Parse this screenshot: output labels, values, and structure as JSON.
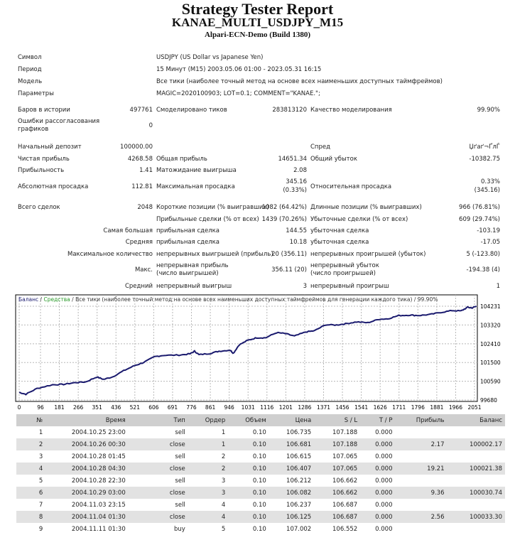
{
  "header": {
    "title": "Strategy Tester Report",
    "subtitle": "KANAE_MULTI_USDJPY_M15",
    "broker": "Alpari-ECN-Demo (Build 1380)"
  },
  "info": {
    "symbol": {
      "label": "Символ",
      "value": "USDJPY (US Dollar vs Japanese Yen)"
    },
    "period": {
      "label": "Период",
      "value": "15 Минут (M15) 2003.05.06 01:00 - 2023.05.31 16:15"
    },
    "model": {
      "label": "Модель",
      "value": "Все тики (наиболее точный метод на основе всех наименьших доступных таймфреймов)"
    },
    "params": {
      "label": "Параметры",
      "value": "MAGIC=2020100903; LOT=0.1; COMMENT=\"KANAE.\";"
    }
  },
  "stats": {
    "bars": {
      "label": "Баров в истории",
      "value": "497761"
    },
    "ticks": {
      "label": "Смоделировано тиков",
      "value": "283813120"
    },
    "quality": {
      "label": "Качество моделирования",
      "value": "99.90%"
    },
    "mismatch": {
      "label": "Ошибки рассогласования графиков",
      "value": "0"
    },
    "deposit": {
      "label": "Начальный депозит",
      "value": "100000.00"
    },
    "spread": {
      "label": "Спред",
      "value": "Џґаґ¬ҐлЃ"
    },
    "net_profit": {
      "label": "Чистая прибыль",
      "value": "4268.58"
    },
    "gross_profit": {
      "label": "Общая прибыль",
      "value": "14651.34"
    },
    "gross_loss": {
      "label": "Общий убыток",
      "value": "-10382.75"
    },
    "profit_factor": {
      "label": "Прибыльность",
      "value": "1.41"
    },
    "expected_payoff": {
      "label": "Матожидание выигрыша",
      "value": "2.08"
    },
    "abs_dd": {
      "label": "Абсолютная просадка",
      "value": "112.81"
    },
    "max_dd": {
      "label": "Максимальная просадка",
      "value": "345.16",
      "value2": "(0.33%)"
    },
    "rel_dd": {
      "label": "Относительная просадка",
      "value": "0.33%",
      "value2": "(345.16)"
    },
    "total_trades": {
      "label": "Всего сделок",
      "value": "2048"
    },
    "short": {
      "label": "Короткие позиции (% выигравших)",
      "value": "1082 (64.42%)"
    },
    "long": {
      "label": "Длинные позиции (% выигравших)",
      "value": "966 (76.81%)"
    },
    "profit_trades": {
      "label": "Прибыльные сделки (% от всех)",
      "value": "1439 (70.26%)"
    },
    "loss_trades": {
      "label": "Убыточные сделки (% от всех)",
      "value": "609 (29.74%)"
    },
    "largest": {
      "label": "Самая большая",
      "profit_label": "прибыльная сделка",
      "profit": "144.55",
      "loss_label": "убыточная сделка",
      "loss": "-103.19"
    },
    "average": {
      "label": "Средняя",
      "profit_label": "прибыльная сделка",
      "profit": "10.18",
      "loss_label": "убыточная сделка",
      "loss": "-17.05"
    },
    "max_count": {
      "label": "Максимальное количество",
      "profit_label": "непрерывных выигрышей (прибыль)",
      "profit": "20 (356.11)",
      "loss_label": "непрерывных проигрышей (убыток)",
      "loss": "5 (-123.80)"
    },
    "max": {
      "label": "Макс.",
      "profit_label": "непрерывная прибыль (число выигрышей)",
      "profit": "356.11 (20)",
      "loss_label": "непрерывный убыток (число проигрышей)",
      "loss": "-194.38 (4)"
    },
    "avg_consec": {
      "label": "Средний",
      "profit_label": "непрерывный выигрыш",
      "profit": "3",
      "loss_label": "непрерывный проигрыш",
      "loss": "1"
    }
  },
  "chart_data": {
    "type": "line",
    "legend": {
      "balance": "Баланс",
      "sep": " / ",
      "equity": "Средства",
      "rest": " / Все тики (наиболее точный метод на основе всех наименьших доступных таймфреймов для генерации каждого тика) / 99.90%"
    },
    "colors": {
      "balance": "#1a1a6e",
      "equity": "#2a9a2a",
      "grid": "#b8b8b8"
    },
    "x_ticks": [
      0,
      96,
      181,
      266,
      351,
      436,
      521,
      606,
      691,
      776,
      861,
      946,
      1031,
      1116,
      1201,
      1286,
      1371,
      1456,
      1541,
      1626,
      1711,
      1796,
      1881,
      1966,
      2051
    ],
    "y_ticks": [
      99680,
      100590,
      101500,
      102410,
      103320,
      104231
    ],
    "xlim": [
      0,
      2075
    ],
    "ylim": [
      99680,
      104231
    ],
    "x": [
      0,
      30,
      80,
      150,
      200,
      250,
      300,
      350,
      380,
      420,
      470,
      520,
      560,
      610,
      650,
      720,
      770,
      790,
      810,
      860,
      900,
      950,
      965,
      990,
      1030,
      1070,
      1110,
      1160,
      1200,
      1240,
      1290,
      1330,
      1380,
      1430,
      1470,
      1520,
      1570,
      1620,
      1660,
      1710,
      1760,
      1800,
      1850,
      1900,
      1950,
      1990,
      2020,
      2040,
      2060
    ],
    "y": [
      100050,
      99960,
      100240,
      100420,
      100440,
      100520,
      100560,
      100800,
      100680,
      100800,
      101100,
      101350,
      101500,
      101780,
      101850,
      101860,
      101920,
      102050,
      101880,
      101940,
      102050,
      102100,
      101950,
      102350,
      102580,
      102700,
      102700,
      102950,
      102900,
      102780,
      102980,
      103040,
      103330,
      103320,
      103380,
      103470,
      103430,
      103600,
      103620,
      103780,
      103800,
      103780,
      103830,
      103930,
      104020,
      104000,
      104180,
      104150,
      104231
    ]
  },
  "trades": {
    "headers": [
      "№",
      "Время",
      "Тип",
      "Ордер",
      "Объем",
      "Цена",
      "S / L",
      "T / P",
      "Прибыль",
      "Баланс"
    ],
    "rows": [
      [
        "1",
        "2004.10.25 23:00",
        "sell",
        "1",
        "0.10",
        "106.735",
        "107.188",
        "0.000",
        "",
        ""
      ],
      [
        "2",
        "2004.10.26 00:30",
        "close",
        "1",
        "0.10",
        "106.681",
        "107.188",
        "0.000",
        "2.17",
        "100002.17"
      ],
      [
        "3",
        "2004.10.28 01:45",
        "sell",
        "2",
        "0.10",
        "106.615",
        "107.065",
        "0.000",
        "",
        ""
      ],
      [
        "4",
        "2004.10.28 04:30",
        "close",
        "2",
        "0.10",
        "106.407",
        "107.065",
        "0.000",
        "19.21",
        "100021.38"
      ],
      [
        "5",
        "2004.10.28 22:30",
        "sell",
        "3",
        "0.10",
        "106.212",
        "106.662",
        "0.000",
        "",
        ""
      ],
      [
        "6",
        "2004.10.29 03:00",
        "close",
        "3",
        "0.10",
        "106.082",
        "106.662",
        "0.000",
        "9.36",
        "100030.74"
      ],
      [
        "7",
        "2004.11.03 23:15",
        "sell",
        "4",
        "0.10",
        "106.237",
        "106.687",
        "0.000",
        "",
        ""
      ],
      [
        "8",
        "2004.11.04 01:30",
        "close",
        "4",
        "0.10",
        "106.125",
        "106.687",
        "0.000",
        "2.56",
        "100033.30"
      ],
      [
        "9",
        "2004.11.11 01:30",
        "buy",
        "5",
        "0.10",
        "107.002",
        "106.552",
        "0.000",
        "",
        ""
      ]
    ]
  }
}
